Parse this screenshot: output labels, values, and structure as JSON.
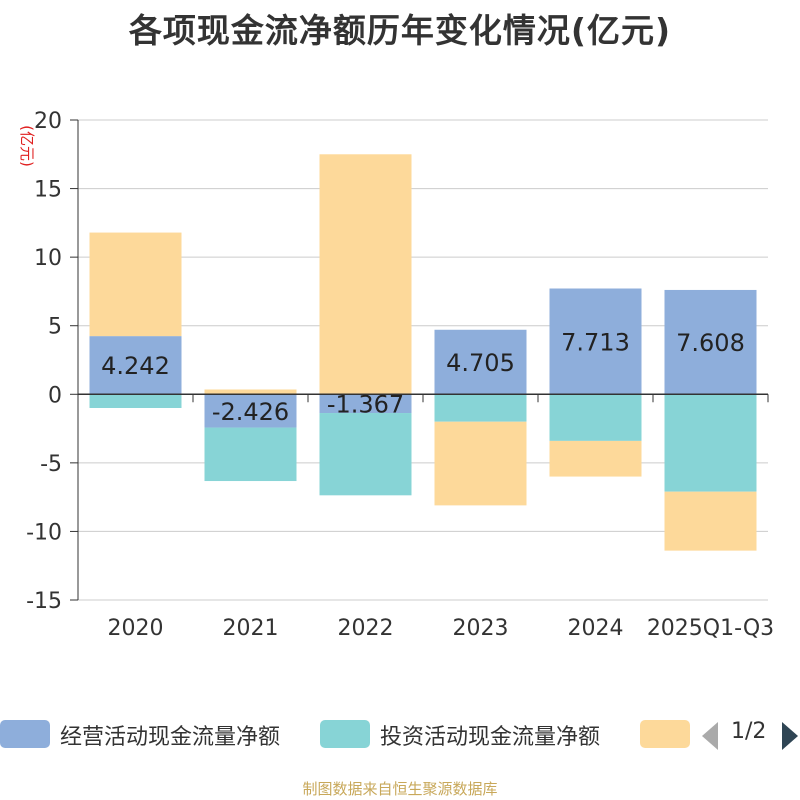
{
  "chart_data": {
    "type": "bar",
    "stacked": true,
    "title": "各项现金流净额历年变化情况(亿元)",
    "ylabel": "(亿元)",
    "xlabel": "",
    "ylim": [
      -15,
      20
    ],
    "yticks": [
      20,
      15,
      10,
      5,
      0,
      -5,
      -10,
      -15
    ],
    "ytick_labels": [
      "20",
      "15",
      "10",
      "5",
      "0",
      "-5",
      "-10",
      "-15"
    ],
    "grid": true,
    "categories": [
      "2020",
      "2021",
      "2022",
      "2023",
      "2024",
      "2025Q1-Q3"
    ],
    "series": [
      {
        "name": "经营活动现金流量净额",
        "color": "#8eaedb",
        "values": [
          4.242,
          -2.426,
          -1.367,
          4.705,
          7.713,
          7.608
        ],
        "labels": [
          "4.242",
          "-2.426",
          "-1.367",
          "4.705",
          "7.713",
          "7.608"
        ]
      },
      {
        "name": "投资活动现金流量净额",
        "color": "#87d4d6",
        "values": [
          -1.0,
          -3.9,
          -6.0,
          -2.0,
          -3.4,
          -7.1
        ]
      },
      {
        "name": "",
        "color": "#fdd99a",
        "values": [
          7.55,
          0.35,
          17.5,
          -6.1,
          -2.6,
          -4.3
        ]
      }
    ]
  },
  "legend": {
    "items": [
      "经营活动现金流量净额",
      "投资活动现金流量净额",
      ""
    ],
    "page": "1/2"
  },
  "footer": "制图数据来自恒生聚源数据库"
}
